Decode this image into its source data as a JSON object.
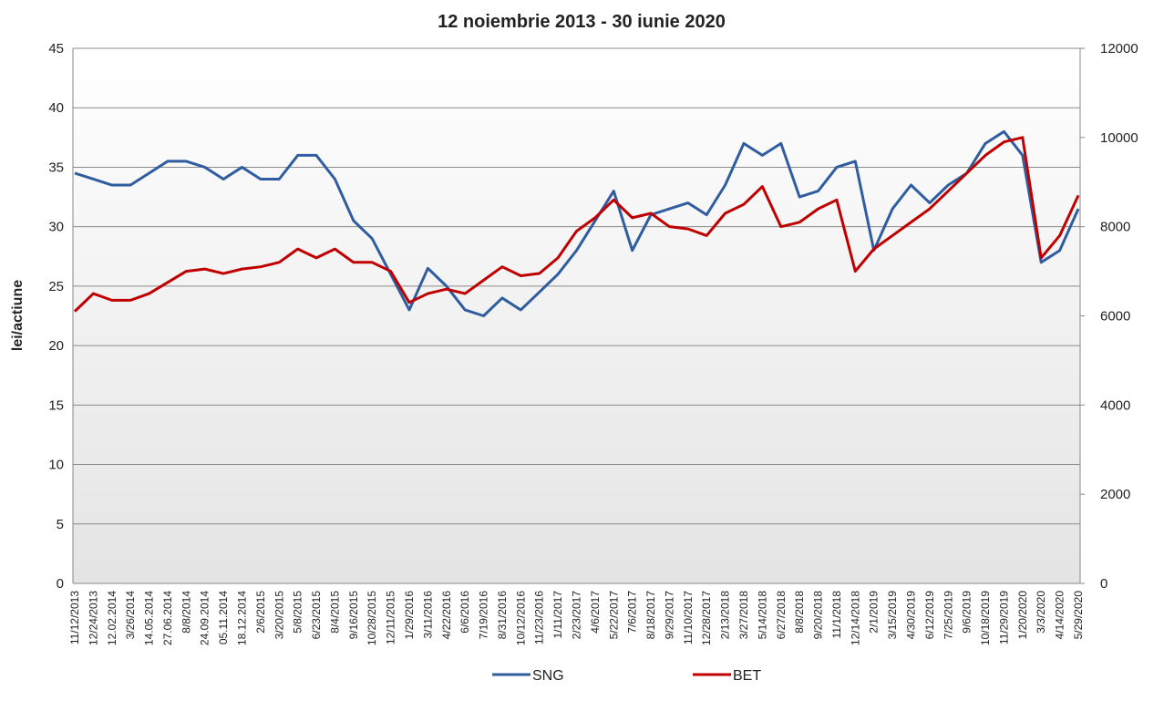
{
  "chart_data": {
    "type": "line",
    "title": "12 noiembrie 2013 - 30 iunie 2020",
    "y_label": "lei/actiune",
    "categories": [
      "11/12/2013",
      "12/24/2013",
      "12.02.2014",
      "3/26/2014",
      "14.05.2014",
      "27.06.2014",
      "8/8/2014",
      "24.09.2014",
      "05.11.2014",
      "18.12.2014",
      "2/6/2015",
      "3/20/2015",
      "5/8/2015",
      "6/23/2015",
      "8/4/2015",
      "9/16/2015",
      "10/28/2015",
      "12/11/2015",
      "1/29/2016",
      "3/11/2016",
      "4/22/2016",
      "6/6/2016",
      "7/19/2016",
      "8/31/2016",
      "10/12/2016",
      "11/23/2016",
      "1/11/2017",
      "2/23/2017",
      "4/6/2017",
      "5/22/2017",
      "7/6/2017",
      "8/18/2017",
      "9/29/2017",
      "11/10/2017",
      "12/28/2017",
      "2/13/2018",
      "3/27/2018",
      "5/14/2018",
      "6/27/2018",
      "8/8/2018",
      "9/20/2018",
      "11/1/2018",
      "12/14/2018",
      "2/1/2019",
      "3/15/2019",
      "4/30/2019",
      "6/12/2019",
      "7/25/2019",
      "9/6/2019",
      "10/18/2019",
      "11/29/2019",
      "1/20/2020",
      "3/3/2020",
      "4/14/2020",
      "5/29/2020"
    ],
    "series": [
      {
        "name": "SNG",
        "color": "#2f5d9f",
        "values": [
          34.5,
          34,
          33.5,
          33.5,
          34.5,
          35.5,
          35.5,
          35,
          34,
          35,
          34,
          34,
          36,
          36,
          34,
          30.5,
          29,
          26,
          23,
          26.5,
          25,
          23,
          22.5,
          24,
          23,
          24.5,
          26,
          28,
          30.5,
          33,
          28,
          31,
          31.5,
          32,
          31,
          33.5,
          37,
          36,
          37,
          32.5,
          33,
          35,
          35.5,
          28,
          31.5,
          33.5,
          32,
          33.5,
          34.5,
          37,
          38,
          36,
          27,
          28,
          31.5
        ]
      },
      {
        "name": "BET",
        "color": "#c00000",
        "axis": "y2",
        "values": [
          6100,
          6500,
          6350,
          6350,
          6500,
          6750,
          7000,
          7050,
          6950,
          7050,
          7100,
          7200,
          7500,
          7300,
          7500,
          7200,
          7200,
          7000,
          6300,
          6500,
          6600,
          6500,
          6800,
          7100,
          6900,
          6950,
          7300,
          7900,
          8200,
          8600,
          8200,
          8300,
          8000,
          7950,
          7800,
          8300,
          8500,
          8900,
          8000,
          8100,
          8400,
          8600,
          7000,
          7500,
          7800,
          8100,
          8400,
          8800,
          9200,
          9600,
          9900,
          10000,
          7300,
          7800,
          8700
        ]
      }
    ],
    "ylim": [
      0,
      45
    ],
    "yticks": [
      0,
      5,
      10,
      15,
      20,
      25,
      30,
      35,
      40,
      45
    ],
    "y2lim": [
      0,
      12000
    ],
    "y2ticks": [
      0,
      2000,
      4000,
      6000,
      8000,
      10000,
      12000
    ],
    "grid": true
  }
}
